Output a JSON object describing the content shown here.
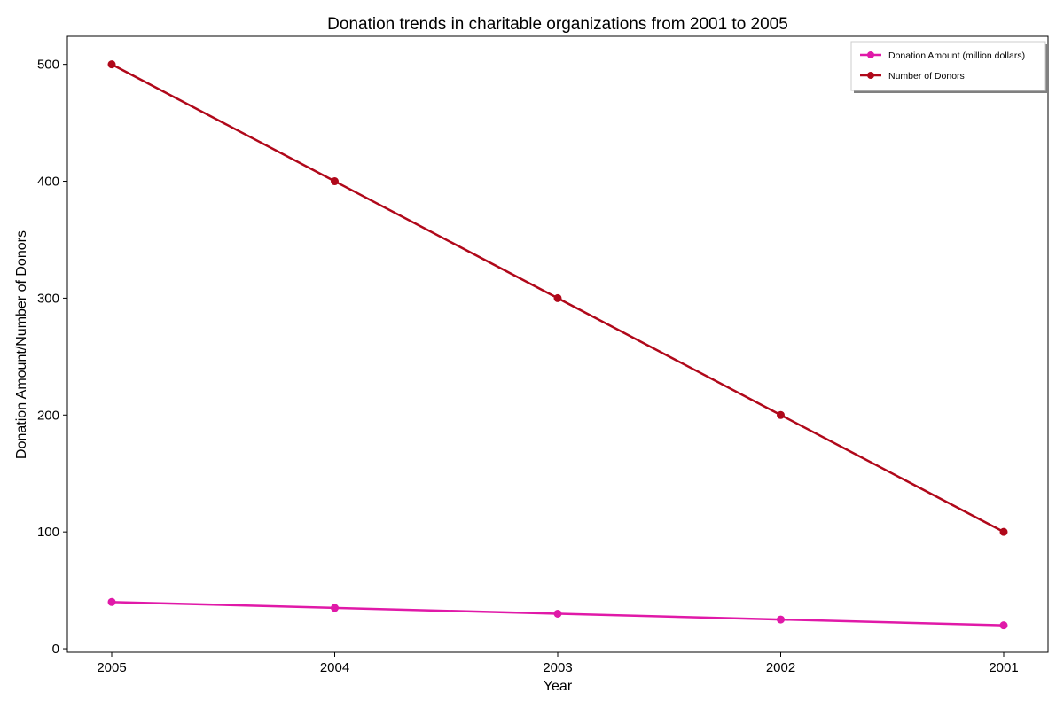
{
  "chart_data": {
    "type": "line",
    "title": "Donation trends in charitable organizations from 2001 to 2005",
    "xlabel": "Year",
    "ylabel": "Donation Amount/Number of Donors",
    "categories": [
      "2005",
      "2004",
      "2003",
      "2002",
      "2001"
    ],
    "ylim": [
      -3,
      524
    ],
    "yticks": [
      0,
      100,
      200,
      300,
      400,
      500
    ],
    "grid": false,
    "legend_position": "top-right",
    "series": [
      {
        "name": "Donation Amount (million dollars)",
        "color": "#e019a8",
        "values": [
          40,
          35,
          30,
          25,
          20
        ]
      },
      {
        "name": "Number of Donors",
        "color": "#b0081a",
        "values": [
          500,
          400,
          300,
          200,
          100
        ]
      }
    ]
  }
}
